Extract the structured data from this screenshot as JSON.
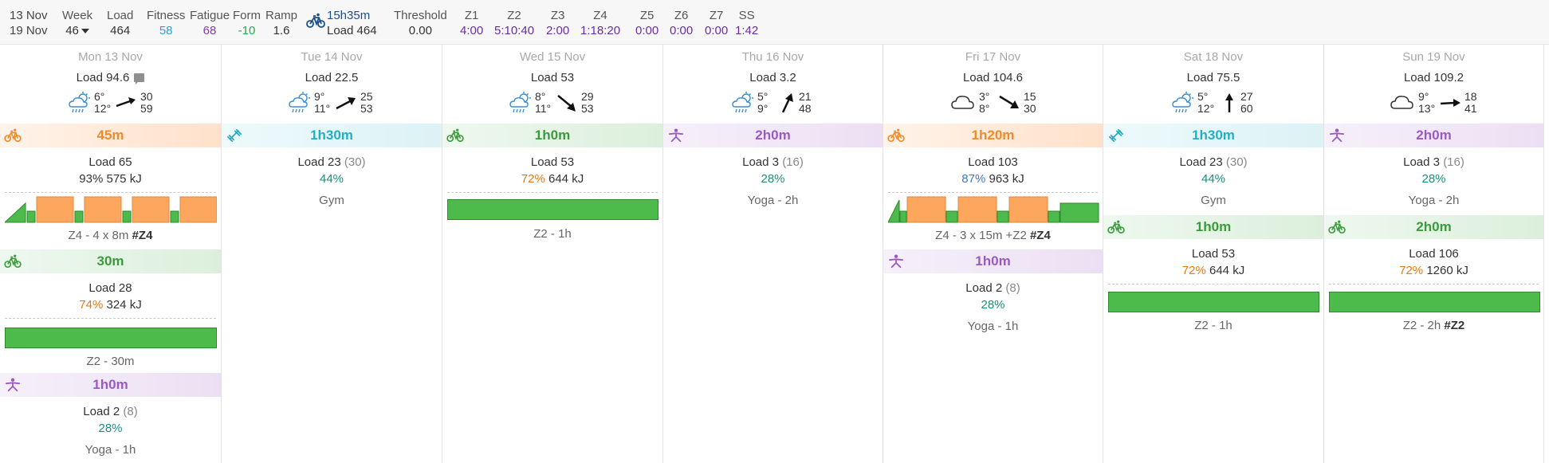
{
  "header": {
    "date_from": "13 Nov",
    "date_to": "19 Nov",
    "week": {
      "title": "Week",
      "value": "46"
    },
    "load": {
      "title": "Load",
      "value": "464"
    },
    "fitness": {
      "title": "Fitness",
      "value": "58"
    },
    "fatigue": {
      "title": "Fatigue",
      "value": "68"
    },
    "form": {
      "title": "Form",
      "value": "-10"
    },
    "ramp": {
      "title": "Ramp",
      "value": "1.6"
    },
    "total_time": "15h35m",
    "total_load": "Load 464",
    "threshold": {
      "title": "Threshold",
      "value": "0.00"
    },
    "zones": [
      {
        "title": "Z1",
        "value": "4:00"
      },
      {
        "title": "Z2",
        "value": "5:10:40"
      },
      {
        "title": "Z3",
        "value": "2:00"
      },
      {
        "title": "Z4",
        "value": "1:18:20"
      },
      {
        "title": "Z5",
        "value": "0:00"
      },
      {
        "title": "Z6",
        "value": "0:00"
      },
      {
        "title": "Z7",
        "value": "0:00"
      },
      {
        "title": "SS",
        "value": "1:42"
      }
    ]
  },
  "days": [
    {
      "date": "Mon 13 Nov",
      "load": "Load 94.6",
      "weather": {
        "icon": "cloud-rain-sun-icon",
        "high": "6°",
        "low": "12°",
        "wind_a": "30",
        "wind_b": "59"
      },
      "activities": [
        {
          "type": "ride",
          "icon": "bike-icon",
          "duration": "45m",
          "load": "Load 65",
          "pct": "93%",
          "kj": "575 kJ",
          "name": "Z4 - 4 x 8m",
          "tag": "#Z4"
        },
        {
          "type": "ride-easy",
          "icon": "bike-icon",
          "duration": "30m",
          "load": "Load 28",
          "pct": "74%",
          "kj": "324 kJ",
          "name": "Z2 - 30m"
        },
        {
          "type": "yoga",
          "icon": "yoga-icon",
          "duration": "1h0m",
          "load": "Load 2",
          "load_paren": "(8)",
          "pct": "28%",
          "name": "Yoga - 1h"
        }
      ]
    },
    {
      "date": "Tue 14 Nov",
      "load": "Load 22.5",
      "weather": {
        "icon": "cloud-rain-sun-icon",
        "high": "9°",
        "low": "11°",
        "wind_a": "25",
        "wind_b": "53"
      },
      "activities": [
        {
          "type": "wt",
          "icon": "weights-icon",
          "duration": "1h30m",
          "load": "Load 23",
          "load_paren": "(30)",
          "pct": "44%",
          "name": "Gym"
        }
      ]
    },
    {
      "date": "Wed 15 Nov",
      "load": "Load 53",
      "weather": {
        "icon": "cloud-rain-sun-icon",
        "high": "8°",
        "low": "11°",
        "wind_a": "29",
        "wind_b": "53"
      },
      "activities": [
        {
          "type": "ride-easy",
          "icon": "bike-icon",
          "duration": "1h0m",
          "load": "Load 53",
          "pct": "72%",
          "kj": "644 kJ",
          "name": "Z2 - 1h"
        }
      ]
    },
    {
      "date": "Thu 16 Nov",
      "load": "Load 3.2",
      "weather": {
        "icon": "cloud-rain-sun-icon",
        "high": "5°",
        "low": "9°",
        "wind_a": "21",
        "wind_b": "48"
      },
      "activities": [
        {
          "type": "yoga",
          "icon": "yoga-icon",
          "duration": "2h0m",
          "load": "Load 3",
          "load_paren": "(16)",
          "pct": "28%",
          "name": "Yoga - 2h"
        }
      ]
    },
    {
      "date": "Fri 17 Nov",
      "load": "Load 104.6",
      "weather": {
        "icon": "cloud-icon",
        "high": "3°",
        "low": "8°",
        "wind_a": "15",
        "wind_b": "30"
      },
      "activities": [
        {
          "type": "ride",
          "icon": "bike-icon",
          "duration": "1h20m",
          "load": "Load 103",
          "pct": "87%",
          "kj": "963 kJ",
          "name": "Z4 - 3 x 15m +Z2",
          "tag": "#Z4"
        },
        {
          "type": "yoga",
          "icon": "yoga-icon",
          "duration": "1h0m",
          "load": "Load 2",
          "load_paren": "(8)",
          "pct": "28%",
          "name": "Yoga - 1h"
        }
      ]
    },
    {
      "date": "Sat 18 Nov",
      "load": "Load 75.5",
      "weather": {
        "icon": "cloud-rain-sun-icon",
        "high": "5°",
        "low": "12°",
        "wind_a": "27",
        "wind_b": "60"
      },
      "activities": [
        {
          "type": "wt",
          "icon": "weights-icon",
          "duration": "1h30m",
          "load": "Load 23",
          "load_paren": "(30)",
          "pct": "44%",
          "name": "Gym"
        },
        {
          "type": "ride-easy",
          "icon": "bike-icon",
          "duration": "1h0m",
          "load": "Load 53",
          "pct": "72%",
          "kj": "644 kJ",
          "name": "Z2 - 1h"
        }
      ]
    },
    {
      "date": "Sun 19 Nov",
      "load": "Load 109.2",
      "weather": {
        "icon": "cloud-icon",
        "high": "9°",
        "low": "13°",
        "wind_a": "18",
        "wind_b": "41"
      },
      "activities": [
        {
          "type": "yoga",
          "icon": "yoga-icon",
          "duration": "2h0m",
          "load": "Load 3",
          "load_paren": "(16)",
          "pct": "28%",
          "name": "Yoga - 2h"
        },
        {
          "type": "ride-easy",
          "icon": "bike-icon",
          "duration": "2h0m",
          "load": "Load 106",
          "pct": "72%",
          "kj": "1260 kJ",
          "name": "Z2 - 2h",
          "tag": "#Z2"
        }
      ]
    }
  ],
  "colors": {
    "ride": "#fda65d",
    "easy": "#4cbb4c",
    "accent": "#1a4f8a"
  }
}
